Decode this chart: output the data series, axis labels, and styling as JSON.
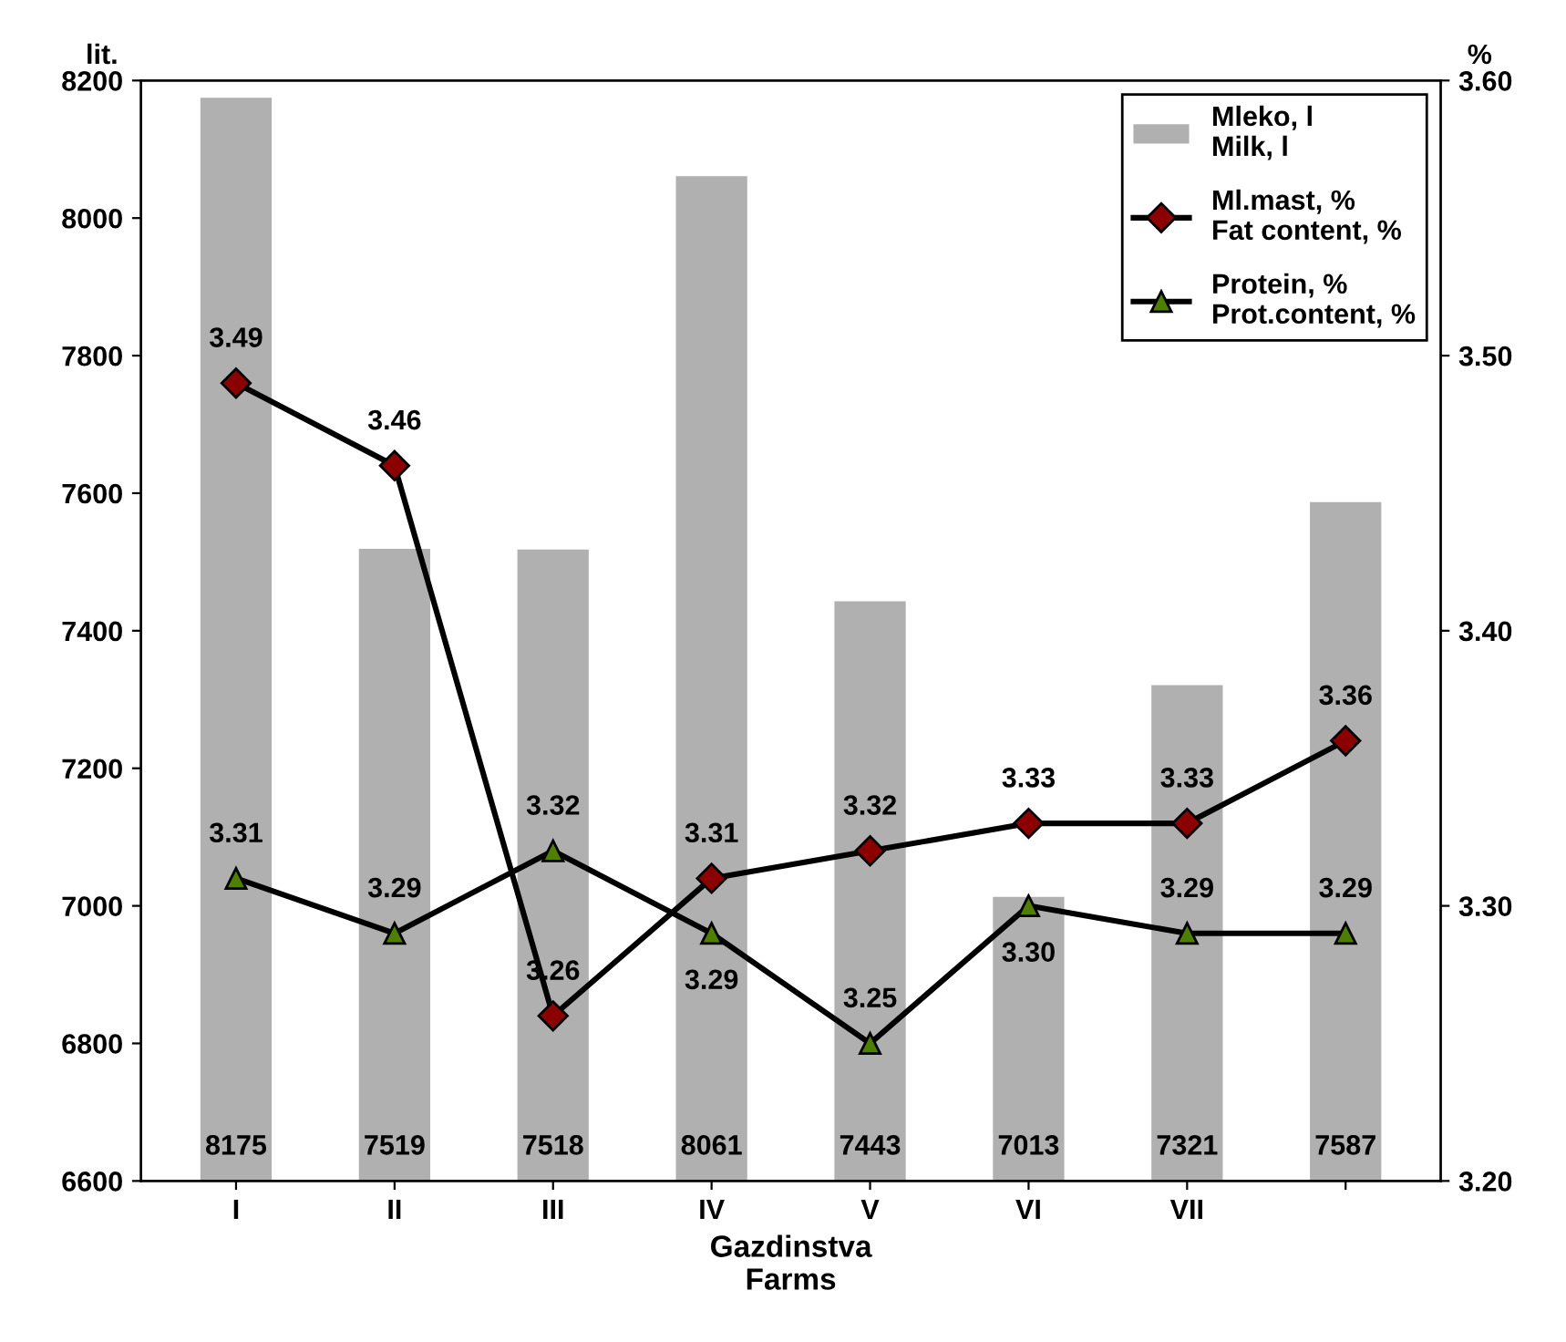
{
  "chart_data": {
    "type": "bar",
    "xlabel": "Gazdinstva\nFarms",
    "ylabel": "lit.",
    "y2label": "%",
    "categories": [
      "I",
      "II",
      "III",
      "IV",
      "V",
      "VI",
      "VII",
      null
    ],
    "series": [
      {
        "name": "Mleko, l\nMilk, l",
        "color": "#b0b0b0",
        "values": [
          8175,
          7519,
          7518,
          8061,
          7443,
          7013,
          7321,
          7587
        ],
        "value_labels": [
          "8175",
          "7519",
          "7518",
          "8061",
          "7443",
          "7013",
          "7321",
          "7587"
        ]
      },
      {
        "name": "Ml.mast, %\nFat content, %",
        "type": "line",
        "axis": "y2",
        "color": "#8b0000",
        "marker": "diamond",
        "values": [
          3.49,
          3.46,
          3.26,
          3.31,
          3.32,
          3.33,
          3.33,
          3.36
        ],
        "value_labels": [
          "3.49",
          "3.46",
          "3.26",
          "3.31",
          "3.32",
          "3.33",
          "3.33",
          "3.36"
        ]
      },
      {
        "name": "Protein, %\nProt.content, %",
        "type": "line",
        "axis": "y2",
        "color": "#4f7f00",
        "marker": "triangle",
        "values": [
          3.31,
          3.29,
          3.32,
          3.29,
          3.25,
          3.3,
          3.29,
          3.29
        ],
        "value_labels": [
          "3.31",
          "3.29",
          "3.32",
          "3.29",
          "3.25",
          "3.30",
          "3.29",
          "3.29"
        ]
      }
    ],
    "ylim": [
      6600,
      8200
    ],
    "yticks": [
      6600,
      6800,
      7000,
      7200,
      7400,
      7600,
      7800,
      8000,
      8200
    ],
    "y2lim": [
      3.2,
      3.6
    ],
    "y2ticks": [
      {
        "value": 3.2,
        "label": "3.20"
      },
      {
        "value": 3.3,
        "label": "3.30"
      },
      {
        "value": 3.4,
        "label": "3.40"
      },
      {
        "value": 3.5,
        "label": "3.50"
      },
      {
        "value": 3.6,
        "label": "3.60"
      }
    ],
    "legend": "top right",
    "grid": false,
    "line_style": "solid"
  }
}
